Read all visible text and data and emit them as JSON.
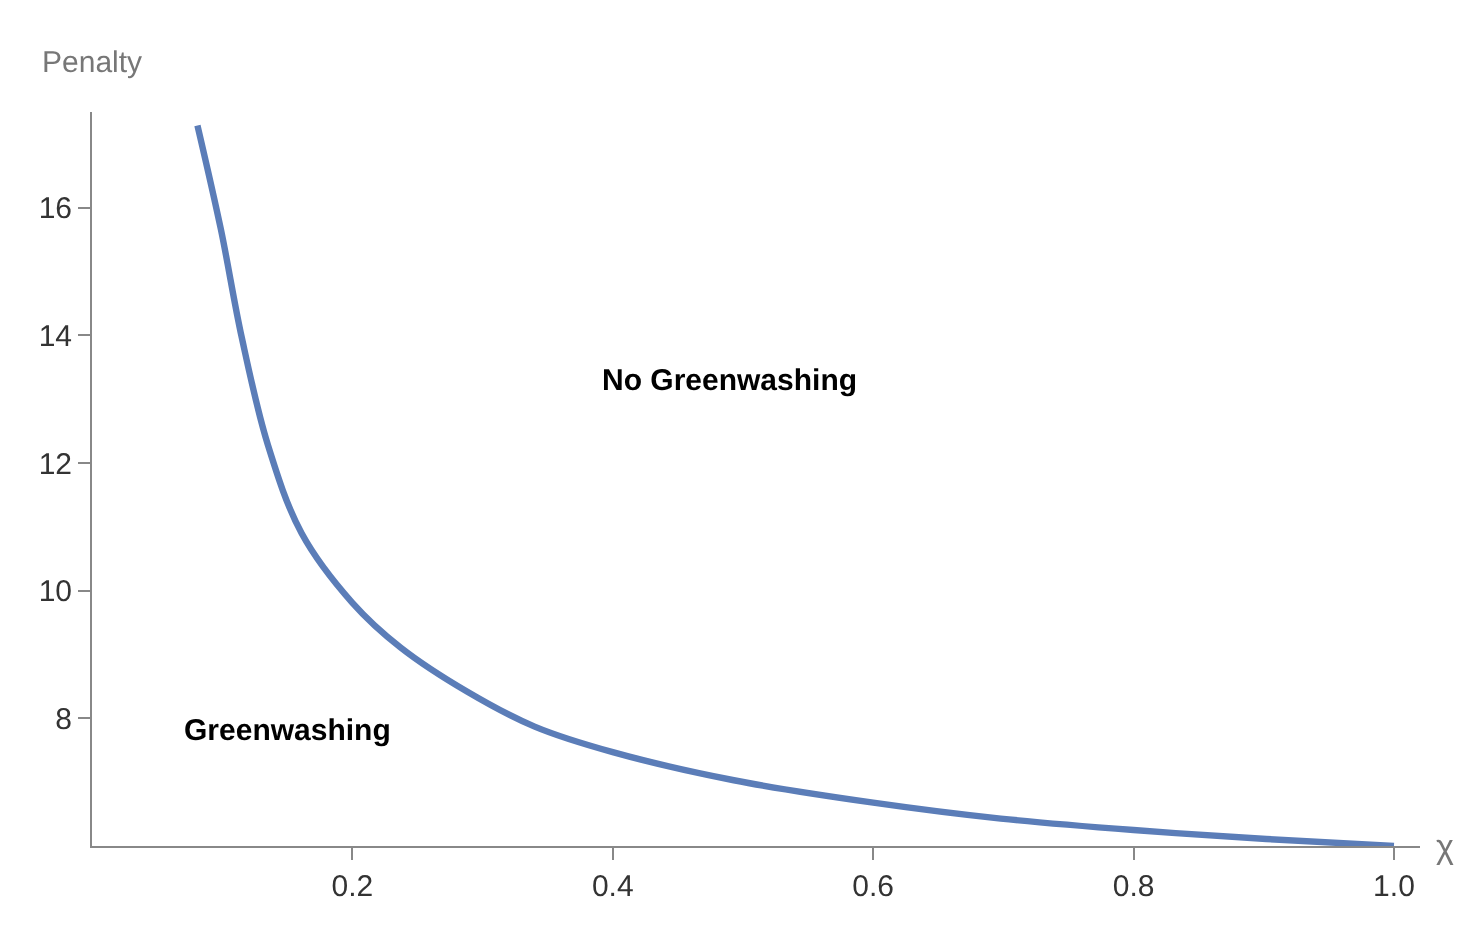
{
  "chart_data": {
    "type": "line",
    "xlabel": "χ",
    "ylabel": "Penalty",
    "annotations": [
      "No Greenwashing",
      "Greenwashing"
    ],
    "x": [
      0.081,
      0.099,
      0.115,
      0.135,
      0.161,
      0.2,
      0.237,
      0.288,
      0.34,
      0.4,
      0.493,
      0.6,
      0.698,
      0.8,
      0.902,
      1.0
    ],
    "series": [
      {
        "color": "#5b7db8",
        "values": [
          17.29,
          15.66,
          13.97,
          12.29,
          10.9,
          9.81,
          9.11,
          8.42,
          7.87,
          7.47,
          7.03,
          6.68,
          6.43,
          6.25,
          6.11,
          6.0
        ]
      }
    ],
    "xlim": [
      0,
      1.02
    ],
    "ylim": [
      6,
      17.5
    ],
    "xticks": [
      0.2,
      0.4,
      0.6,
      0.8,
      {
        "value": 1.0,
        "label": "1.0"
      }
    ],
    "yticks": [
      8,
      10,
      12,
      14,
      16
    ],
    "marker": "none",
    "line_style": "solid"
  }
}
